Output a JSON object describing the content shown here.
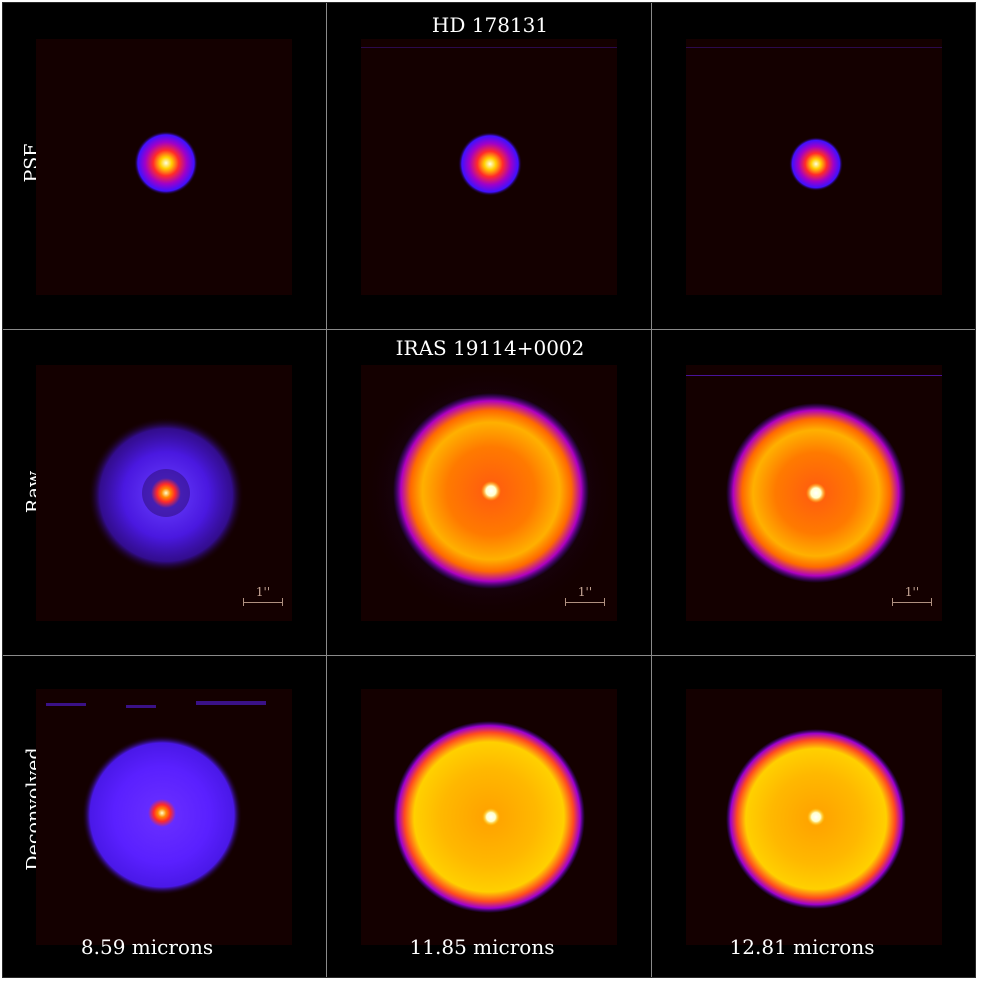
{
  "titles": {
    "psf_star": "HD 178131",
    "target": "IRAS 19114+0002"
  },
  "row_labels": {
    "psf": "PSF",
    "raw": "Raw",
    "deconvolved": "Deconvolved"
  },
  "wavelengths": [
    "8.59 microns",
    "11.85 microns",
    "12.81 microns"
  ],
  "scale_bar_label": "1''",
  "colors": {
    "background": "#000000",
    "panel_background": "#140000",
    "grid_lines": "#8a8a8a",
    "colormap": [
      "#140000",
      "#3a0080",
      "#5a1aff",
      "#b000c0",
      "#ff2a2a",
      "#ff8a00",
      "#ffd000",
      "#ffffcc"
    ]
  }
}
